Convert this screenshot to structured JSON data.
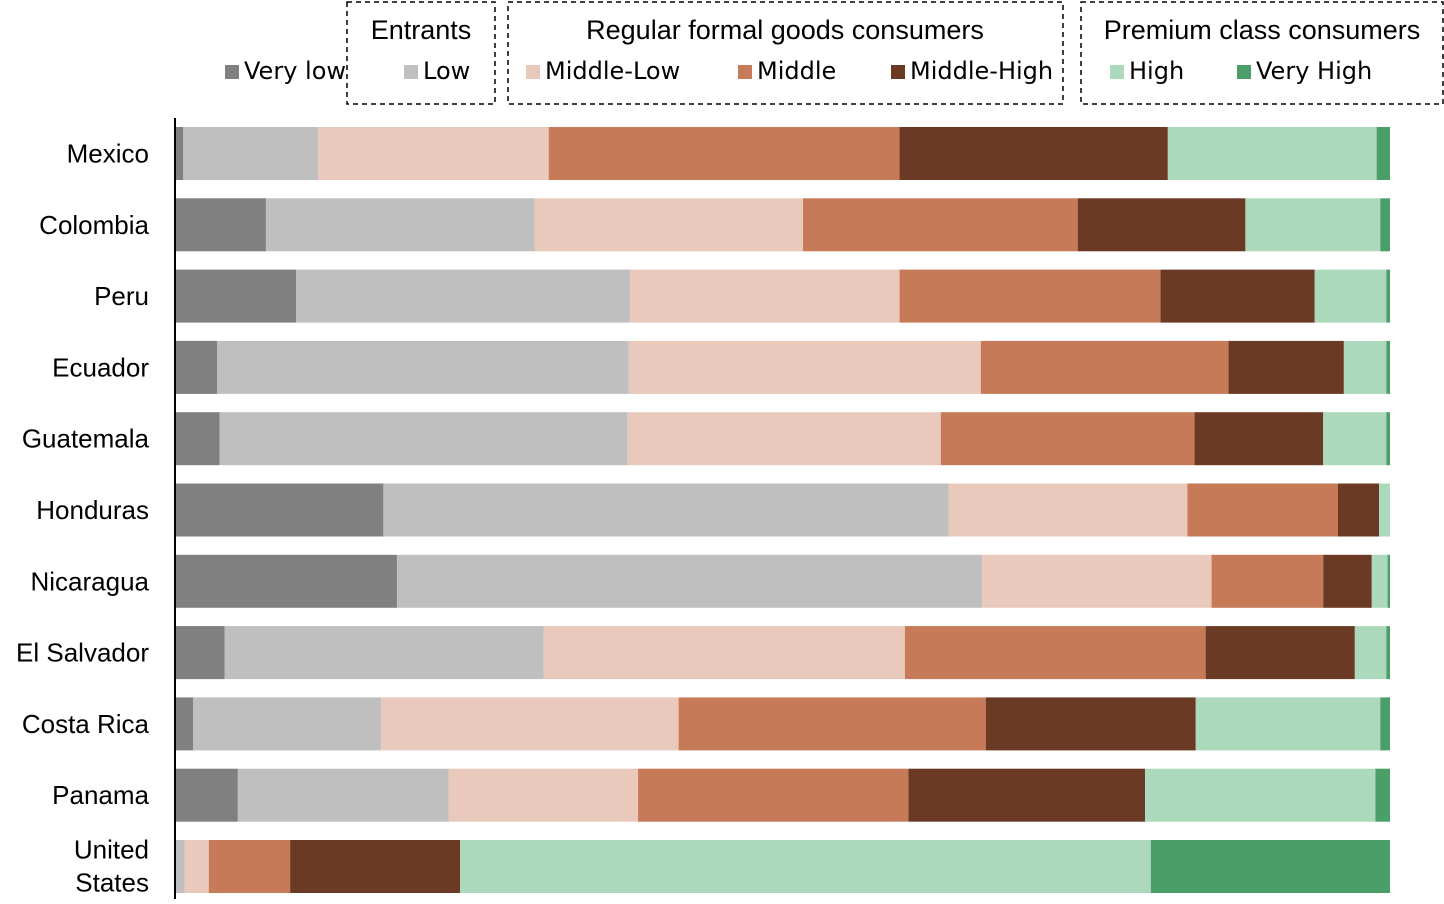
{
  "chart_data": {
    "type": "bar",
    "orientation": "horizontal",
    "stacked": true,
    "normalized_percent": true,
    "categories": [
      "Mexico",
      "Colombia",
      "Peru",
      "Ecuador",
      "Guatemala",
      "Honduras",
      "Nicaragua",
      "El Salvador",
      "Costa Rica",
      "Panama",
      "United States"
    ],
    "legend_groups": [
      {
        "title": "Entrants",
        "members": [
          "Very low",
          "Low"
        ]
      },
      {
        "title": "Regular formal goods consumers",
        "members": [
          "Middle-Low",
          "Middle",
          "Middle-High"
        ]
      },
      {
        "title": "Premium class consumers",
        "members": [
          "High",
          "Very High"
        ]
      }
    ],
    "series": [
      {
        "name": "Very low",
        "color": "#808080",
        "values": [
          0.6,
          7.4,
          9.9,
          3.4,
          3.6,
          17.1,
          18.2,
          4.0,
          1.4,
          5.1,
          0.0
        ]
      },
      {
        "name": "Low",
        "color": "#bfbfbf",
        "values": [
          11.1,
          22.1,
          27.5,
          33.9,
          33.6,
          46.6,
          48.2,
          26.3,
          15.5,
          17.4,
          0.7
        ]
      },
      {
        "name": "Middle-Low",
        "color": "#e8c9bc",
        "values": [
          19.0,
          22.1,
          22.2,
          29.0,
          25.8,
          19.7,
          18.9,
          29.8,
          24.5,
          15.6,
          2.0
        ]
      },
      {
        "name": "Middle",
        "color": "#c67a57",
        "values": [
          28.9,
          22.6,
          21.5,
          20.4,
          20.9,
          12.4,
          9.2,
          24.8,
          25.3,
          22.3,
          6.7
        ]
      },
      {
        "name": "Middle-High",
        "color": "#6b3a24",
        "values": [
          22.1,
          13.8,
          12.7,
          9.5,
          10.6,
          3.4,
          4.0,
          12.3,
          17.3,
          19.5,
          14.0
        ]
      },
      {
        "name": "High",
        "color": "#acd9bb",
        "values": [
          17.2,
          11.1,
          5.9,
          3.5,
          5.2,
          0.9,
          1.3,
          2.6,
          15.2,
          19.0,
          56.9
        ]
      },
      {
        "name": "Very High",
        "color": "#4a9f69",
        "values": [
          1.1,
          0.8,
          0.3,
          0.3,
          0.3,
          0.0,
          0.2,
          0.3,
          0.8,
          1.2,
          19.7
        ]
      }
    ],
    "xlim": [
      0,
      100
    ],
    "grid": false,
    "legend_position": "top"
  }
}
